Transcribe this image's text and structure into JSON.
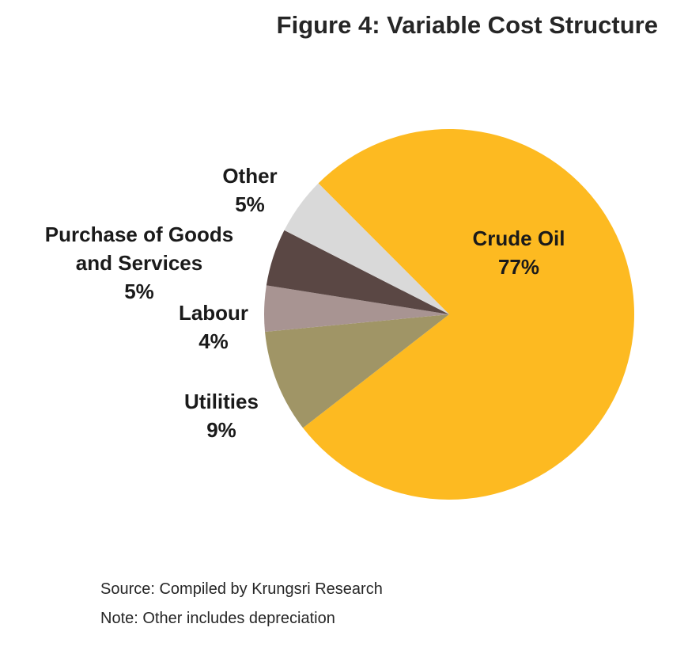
{
  "title": "Figure 4: Variable Cost Structure",
  "chart_data": {
    "type": "pie",
    "title": "Figure 4: Variable Cost Structure",
    "slices": [
      {
        "name": "Crude Oil",
        "value": 77,
        "label": "77%",
        "color": "#FDBA21",
        "label_lines": [
          "Crude Oil",
          "77%"
        ]
      },
      {
        "name": "Utilities",
        "value": 9,
        "label": "9%",
        "color": "#A09566",
        "label_lines": [
          "Utilities",
          "9%"
        ]
      },
      {
        "name": "Labour",
        "value": 4,
        "label": "4%",
        "color": "#A89492",
        "label_lines": [
          "Labour",
          "4%"
        ]
      },
      {
        "name": "Purchase of Goods and Services",
        "value": 5,
        "label": "5%",
        "color": "#5A4744",
        "label_lines": [
          "Purchase of Goods",
          "and Services",
          "5%"
        ]
      },
      {
        "name": "Other",
        "value": 5,
        "label": "5%",
        "color": "#D9D9D9",
        "label_lines": [
          "Other",
          "5%"
        ]
      }
    ],
    "start": "clockwise from upper-left, Crude Oil first",
    "legend": "none (labels beside slices)"
  },
  "footnotes": {
    "source": "Source: Compiled by Krungsri Research",
    "note": "Note: Other includes depreciation"
  }
}
